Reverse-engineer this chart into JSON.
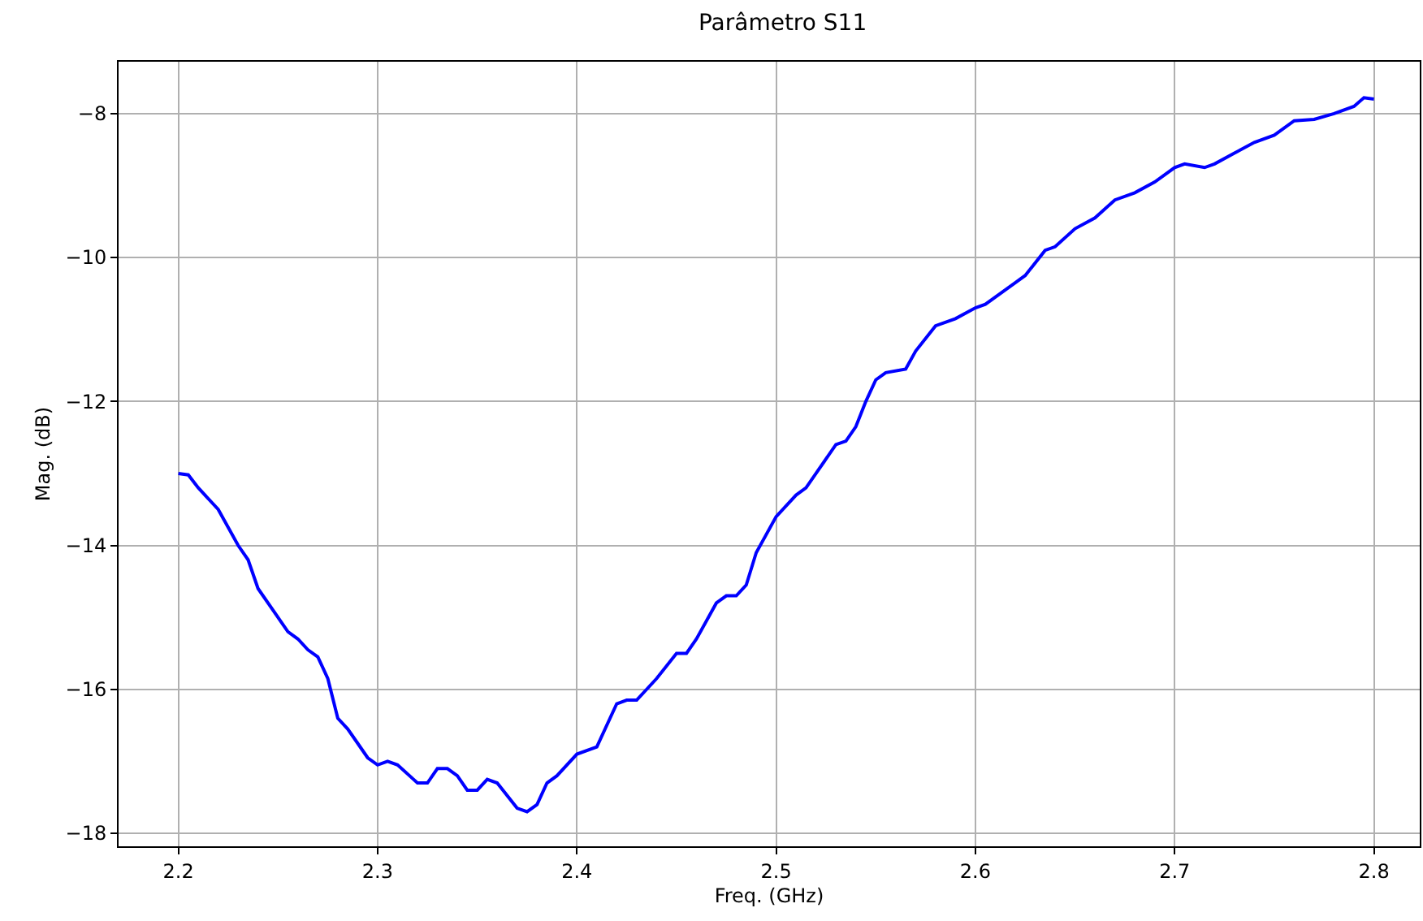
{
  "chart_data": {
    "type": "line",
    "title": "Parâmetro S11",
    "xlabel": "Freq. (GHz)",
    "ylabel": "Mag. (dB)",
    "x": [
      2.2,
      2.205,
      2.21,
      2.22,
      2.23,
      2.235,
      2.24,
      2.25,
      2.255,
      2.26,
      2.265,
      2.27,
      2.275,
      2.28,
      2.285,
      2.29,
      2.295,
      2.3,
      2.305,
      2.31,
      2.32,
      2.325,
      2.33,
      2.335,
      2.34,
      2.345,
      2.35,
      2.355,
      2.36,
      2.37,
      2.375,
      2.38,
      2.385,
      2.39,
      2.4,
      2.41,
      2.42,
      2.425,
      2.43,
      2.44,
      2.45,
      2.455,
      2.46,
      2.47,
      2.475,
      2.48,
      2.485,
      2.49,
      2.5,
      2.51,
      2.515,
      2.52,
      2.53,
      2.535,
      2.54,
      2.545,
      2.55,
      2.555,
      2.565,
      2.57,
      2.58,
      2.59,
      2.6,
      2.605,
      2.62,
      2.625,
      2.635,
      2.64,
      2.65,
      2.66,
      2.67,
      2.68,
      2.69,
      2.7,
      2.705,
      2.715,
      2.72,
      2.73,
      2.74,
      2.75,
      2.76,
      2.77,
      2.78,
      2.79,
      2.795,
      2.8
    ],
    "series": [
      {
        "color": "#0000ff",
        "values": [
          -13.0,
          -13.02,
          -13.2,
          -13.5,
          -14.0,
          -14.2,
          -14.6,
          -15.0,
          -15.2,
          -15.3,
          -15.45,
          -15.55,
          -15.85,
          -16.4,
          -16.55,
          -16.75,
          -16.95,
          -17.05,
          -17.0,
          -17.05,
          -17.3,
          -17.3,
          -17.1,
          -17.1,
          -17.2,
          -17.4,
          -17.4,
          -17.25,
          -17.3,
          -17.65,
          -17.7,
          -17.6,
          -17.3,
          -17.2,
          -16.9,
          -16.8,
          -16.2,
          -16.15,
          -16.15,
          -15.85,
          -15.5,
          -15.5,
          -15.3,
          -14.8,
          -14.7,
          -14.7,
          -14.55,
          -14.1,
          -13.6,
          -13.3,
          -13.2,
          -13.0,
          -12.6,
          -12.55,
          -12.35,
          -12.0,
          -11.7,
          -11.6,
          -11.55,
          -11.3,
          -10.95,
          -10.85,
          -10.7,
          -10.65,
          -10.35,
          -10.25,
          -9.9,
          -9.85,
          -9.6,
          -9.45,
          -9.2,
          -9.1,
          -8.95,
          -8.75,
          -8.7,
          -8.75,
          -8.7,
          -8.55,
          -8.4,
          -8.3,
          -8.1,
          -8.08,
          -8.0,
          -7.9,
          -7.78,
          -7.8
        ]
      }
    ],
    "xlim": [
      2.17,
      2.823
    ],
    "ylim": [
      -18.18,
      -7.28
    ],
    "xticks": [
      2.2,
      2.3,
      2.4,
      2.5,
      2.6,
      2.7,
      2.8
    ],
    "yticks": [
      {
        "value": -18,
        "label": "−18"
      },
      {
        "value": -16,
        "label": "−16"
      },
      {
        "value": -14,
        "label": "−14"
      },
      {
        "value": -12,
        "label": "−12"
      },
      {
        "value": -10,
        "label": "−10"
      },
      {
        "value": -8,
        "label": "−8"
      }
    ],
    "grid": true,
    "line_style": "solid"
  }
}
